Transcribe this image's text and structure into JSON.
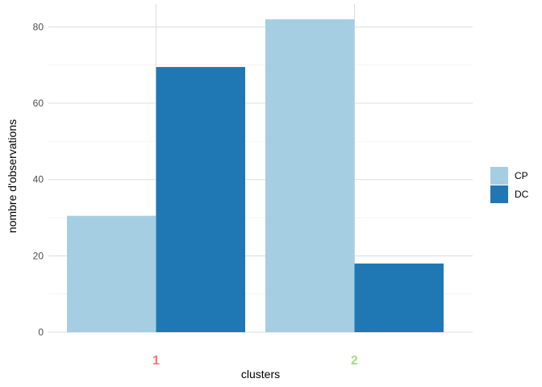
{
  "chart_data": {
    "type": "bar",
    "categories": [
      "1",
      "2"
    ],
    "category_colors": [
      "#f8766d",
      "#a3e07f"
    ],
    "series": [
      {
        "name": "CP",
        "color": "#a6cee3",
        "values": [
          30.5,
          82
        ]
      },
      {
        "name": "DC",
        "color": "#1f78b4",
        "values": [
          69.5,
          18
        ]
      }
    ],
    "xlabel": "clusters",
    "ylabel": "nombre d'observations",
    "ylim": [
      0,
      86
    ],
    "yticks": [
      0,
      20,
      40,
      60,
      80
    ],
    "grid": true,
    "legend_position": "right"
  }
}
